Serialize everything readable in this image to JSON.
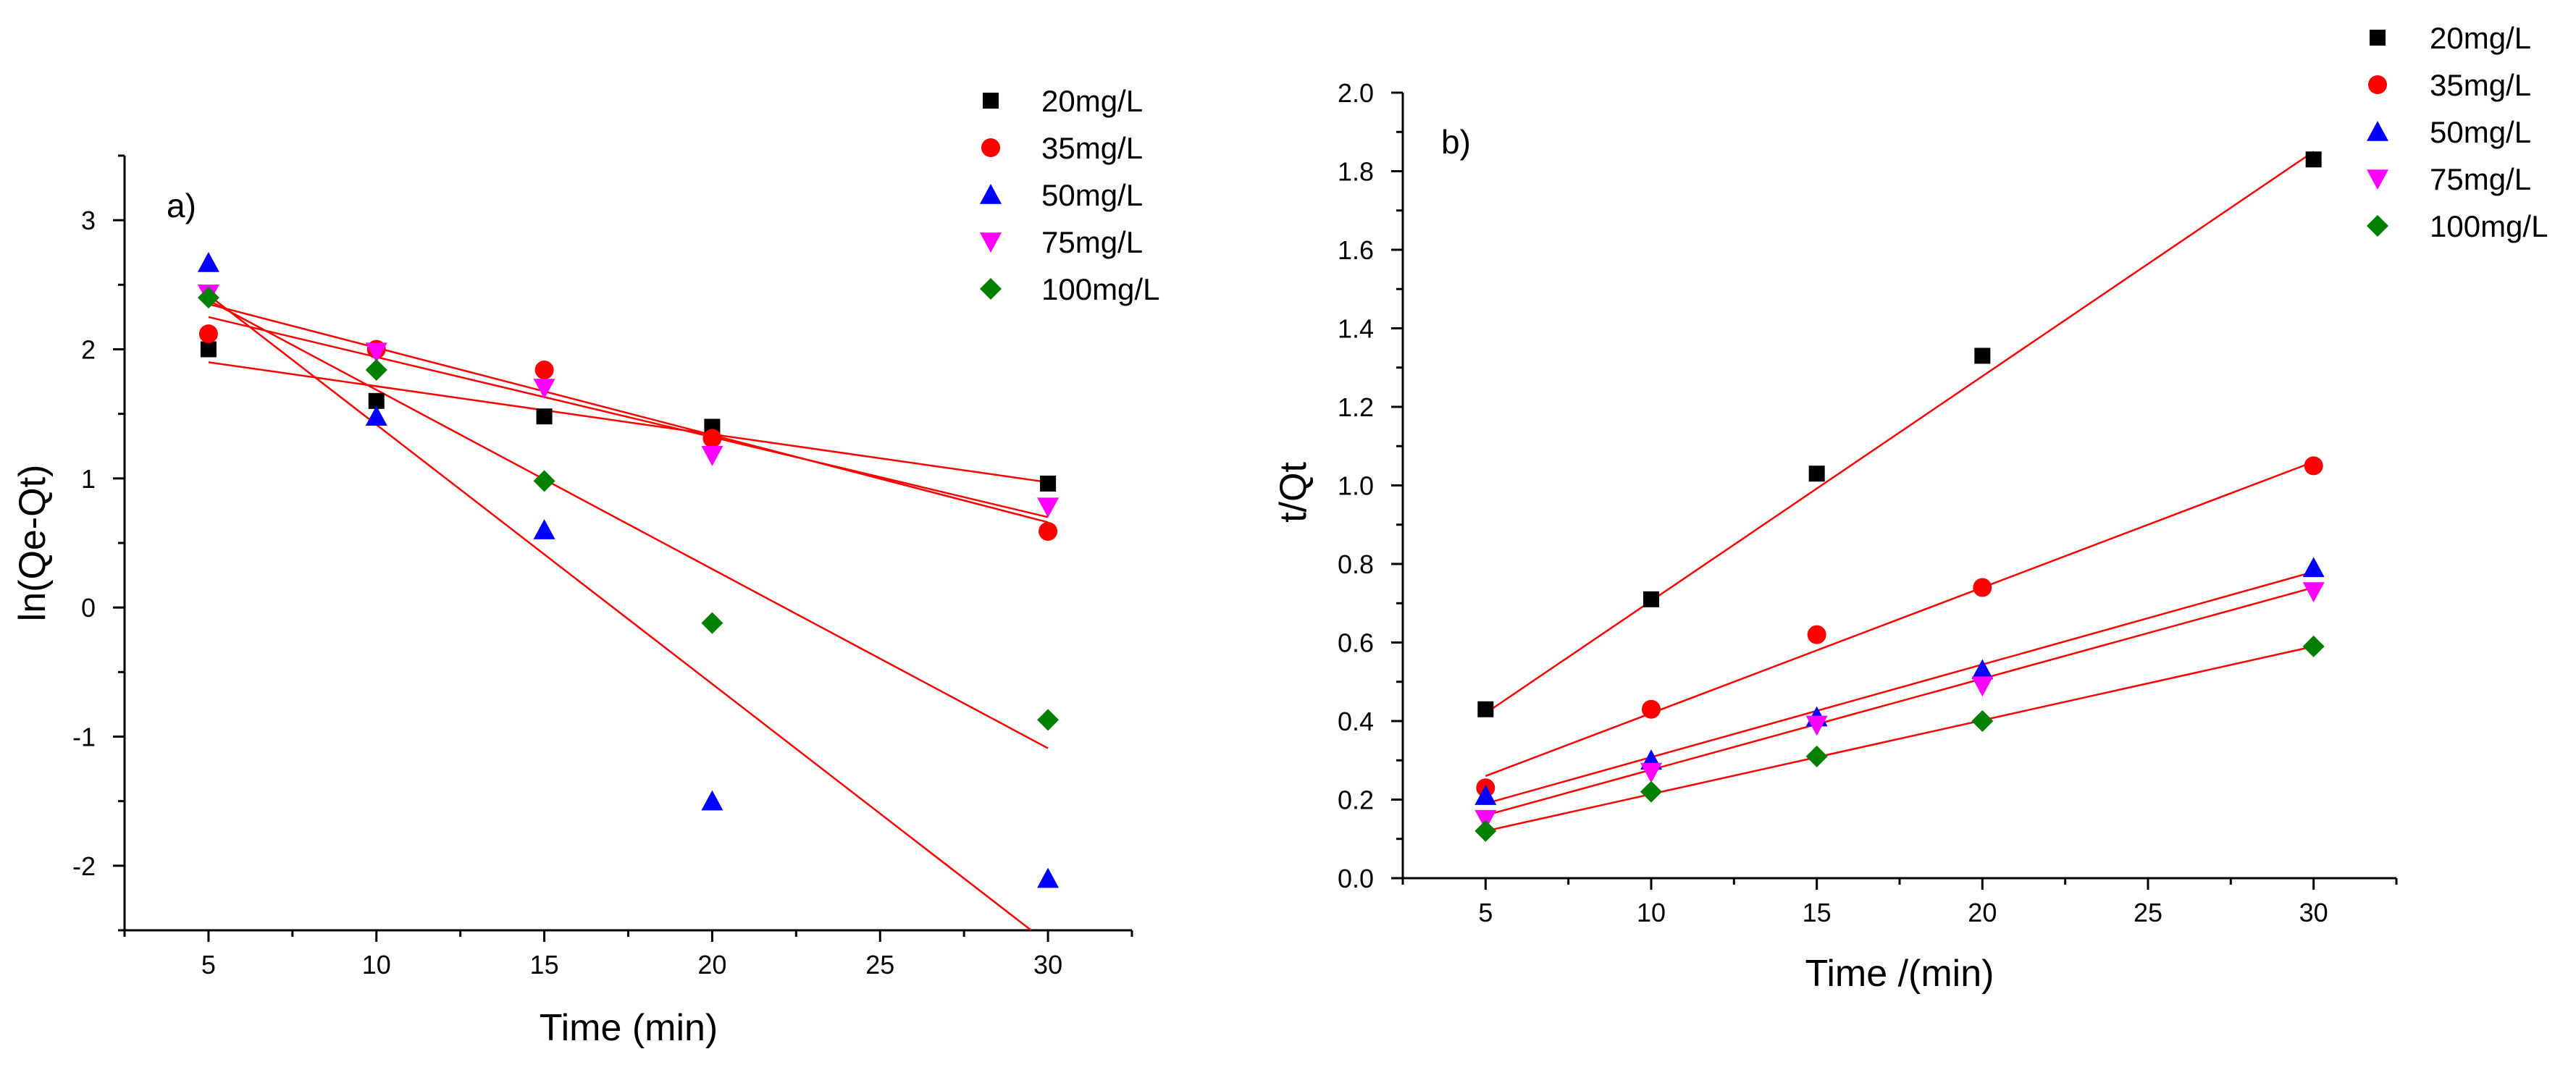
{
  "chart_data": [
    {
      "type": "scatter",
      "panel_label": "a)",
      "xlabel": "Time (min)",
      "ylabel": "ln(Qe-Qt)",
      "xlim": [
        2.5,
        32.5
      ],
      "ylim": [
        -2.5,
        3.5
      ],
      "xticks": [
        5,
        10,
        15,
        20,
        25,
        30
      ],
      "yticks": [
        -2,
        -1,
        0,
        1,
        2,
        3
      ],
      "legend_position": "top-right",
      "fit_line_color": "#ff0000",
      "series": [
        {
          "name": "20mg/L",
          "marker": "square",
          "color": "#000000",
          "x": [
            5,
            10,
            15,
            20,
            30
          ],
          "y": [
            2.0,
            1.6,
            1.48,
            1.4,
            0.96
          ],
          "fit": [
            [
              5,
              1.9
            ],
            [
              30,
              0.97
            ]
          ]
        },
        {
          "name": "35mg/L",
          "marker": "circle",
          "color": "#ff0000",
          "x": [
            5,
            10,
            15,
            20,
            30
          ],
          "y": [
            2.12,
            2.0,
            1.84,
            1.31,
            0.59
          ],
          "fit": [
            [
              5,
              2.35
            ],
            [
              30,
              0.66
            ]
          ]
        },
        {
          "name": "50mg/L",
          "marker": "triangle-up",
          "color": "#0000ff",
          "x": [
            5,
            10,
            15,
            20,
            30
          ],
          "y": [
            2.67,
            1.48,
            0.6,
            -1.5,
            -2.1
          ],
          "fit": [
            [
              5,
              2.42
            ],
            [
              29.5,
              -2.5
            ]
          ]
        },
        {
          "name": "75mg/L",
          "marker": "triangle-down",
          "color": "#ff00ff",
          "x": [
            5,
            10,
            15,
            20,
            30
          ],
          "y": [
            2.43,
            1.98,
            1.7,
            1.18,
            0.78
          ],
          "fit": [
            [
              5,
              2.25
            ],
            [
              30,
              0.7
            ]
          ]
        },
        {
          "name": "100mg/L",
          "marker": "diamond",
          "color": "#008000",
          "x": [
            5,
            10,
            15,
            20,
            30
          ],
          "y": [
            2.4,
            1.84,
            0.98,
            -0.12,
            -0.87
          ],
          "fit": [
            [
              5,
              2.38
            ],
            [
              30,
              -1.09
            ]
          ]
        }
      ]
    },
    {
      "type": "scatter",
      "panel_label": "b)",
      "xlabel": "Time /(min)",
      "ylabel": "t/Qt",
      "xlim": [
        2.5,
        32.5
      ],
      "ylim": [
        0.0,
        2.0
      ],
      "xticks": [
        5,
        10,
        15,
        20,
        25,
        30
      ],
      "yticks": [
        0.0,
        0.2,
        0.4,
        0.6,
        0.8,
        1.0,
        1.2,
        1.4,
        1.6,
        1.8,
        2.0
      ],
      "legend_position": "top-right",
      "fit_line_color": "#ff0000",
      "series": [
        {
          "name": "20mg/L",
          "marker": "square",
          "color": "#000000",
          "x": [
            5,
            10,
            15,
            20,
            30
          ],
          "y": [
            0.43,
            0.71,
            1.03,
            1.33,
            1.83
          ],
          "fit": [
            [
              5,
              0.42
            ],
            [
              30,
              1.85
            ]
          ]
        },
        {
          "name": "35mg/L",
          "marker": "circle",
          "color": "#ff0000",
          "x": [
            5,
            10,
            15,
            20,
            30
          ],
          "y": [
            0.23,
            0.43,
            0.62,
            0.74,
            1.05
          ],
          "fit": [
            [
              5,
              0.26
            ],
            [
              30,
              1.06
            ]
          ]
        },
        {
          "name": "50mg/L",
          "marker": "triangle-up",
          "color": "#0000ff",
          "x": [
            5,
            10,
            15,
            20,
            30
          ],
          "y": [
            0.21,
            0.3,
            0.41,
            0.53,
            0.79
          ],
          "fit": [
            [
              5,
              0.19
            ],
            [
              30,
              0.78
            ]
          ]
        },
        {
          "name": "75mg/L",
          "marker": "triangle-down",
          "color": "#ff00ff",
          "x": [
            5,
            10,
            15,
            20,
            30
          ],
          "y": [
            0.15,
            0.27,
            0.39,
            0.49,
            0.73
          ],
          "fit": [
            [
              5,
              0.16
            ],
            [
              30,
              0.74
            ]
          ]
        },
        {
          "name": "100mg/L",
          "marker": "diamond",
          "color": "#008000",
          "x": [
            5,
            10,
            15,
            20,
            30
          ],
          "y": [
            0.12,
            0.22,
            0.31,
            0.4,
            0.59
          ],
          "fit": [
            [
              5,
              0.12
            ],
            [
              30,
              0.59
            ]
          ]
        }
      ]
    }
  ]
}
